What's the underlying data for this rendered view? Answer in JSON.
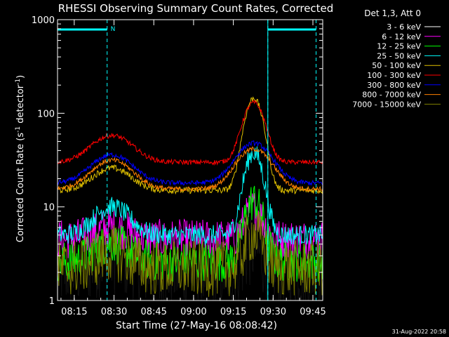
{
  "chart_data": {
    "type": "line",
    "title": "RHESSI Observing Summary Count Rates, Corrected",
    "xlabel": "Start Time (27-May-16 08:08:42)",
    "ylabel_main": "Corrected Count Rate (s",
    "ylabel_sup1": "-1",
    "ylabel_mid": " detector",
    "ylabel_sup2": "-1",
    "ylabel_end": ")",
    "yscale": "log",
    "xlim_minutes": [
      0,
      100
    ],
    "ylim": [
      1,
      1000
    ],
    "x_ticks": [
      {
        "label": "08:15",
        "t": 6.3
      },
      {
        "label": "08:30",
        "t": 21.3
      },
      {
        "label": "08:45",
        "t": 36.3
      },
      {
        "label": "09:00",
        "t": 51.3
      },
      {
        "label": "09:15",
        "t": 66.3
      },
      {
        "label": "09:30",
        "t": 81.3
      },
      {
        "label": "09:45",
        "t": 96.3
      }
    ],
    "y_ticks": [
      {
        "label": "1",
        "v": 1
      },
      {
        "label": "10",
        "v": 10
      },
      {
        "label": "100",
        "v": 100
      },
      {
        "label": "1000",
        "v": 1000
      }
    ],
    "legend_title": "Det 1,3, Att 0",
    "series": [
      {
        "name": "3 - 6 keV",
        "color": "#000000",
        "base": 2.0,
        "bumps": [
          {
            "t": 20.5,
            "a": 0.8,
            "w": 6
          },
          {
            "t": 74,
            "a": 1.5,
            "w": 3
          }
        ],
        "noise": 0.9
      },
      {
        "name": "6 - 12 keV",
        "color": "#ff00ff",
        "base": 4.5,
        "bumps": [
          {
            "t": 20.5,
            "a": 1.5,
            "w": 6
          },
          {
            "t": 74,
            "a": 5,
            "w": 3
          }
        ],
        "noise": 0.5
      },
      {
        "name": "12 - 25 keV",
        "color": "#00ff00",
        "base": 2.6,
        "bumps": [
          {
            "t": 20.5,
            "a": 1.5,
            "w": 6
          },
          {
            "t": 74,
            "a": 9,
            "w": 3
          }
        ],
        "noise": 0.5
      },
      {
        "name": "25 - 50 keV",
        "color": "#00ffff",
        "base": 5.0,
        "bumps": [
          {
            "t": 20.5,
            "a": 5,
            "w": 6
          },
          {
            "t": 74,
            "a": 33,
            "w": 3
          }
        ],
        "noise": 0.25
      },
      {
        "name": "50 - 100 keV",
        "color": "#e0c000",
        "base": 15.0,
        "bumps": [
          {
            "t": 20.5,
            "a": 11,
            "w": 6.5
          },
          {
            "t": 74,
            "a": 130,
            "w": 3
          }
        ],
        "noise": 0.08
      },
      {
        "name": "100 - 300 keV",
        "color": "#ff0000",
        "base": 30.0,
        "bumps": [
          {
            "t": 20.5,
            "a": 28,
            "w": 7
          },
          {
            "t": 74,
            "a": 100,
            "w": 3.6
          }
        ],
        "noise": 0.06
      },
      {
        "name": "300 - 800 keV",
        "color": "#0000ff",
        "base": 18.0,
        "bumps": [
          {
            "t": 20.5,
            "a": 18,
            "w": 7
          },
          {
            "t": 74,
            "a": 30,
            "w": 6
          }
        ],
        "noise": 0.06
      },
      {
        "name": "800 - 7000 keV",
        "color": "#ff8000",
        "base": 15.5,
        "bumps": [
          {
            "t": 20.5,
            "a": 16,
            "w": 7
          },
          {
            "t": 74,
            "a": 26,
            "w": 6
          }
        ],
        "noise": 0.06
      },
      {
        "name": "7000 - 15000 keV",
        "color": "#808000",
        "base": 2.2,
        "bumps": [
          {
            "t": 20.5,
            "a": 1.0,
            "w": 6
          },
          {
            "t": 74,
            "a": 3,
            "w": 3
          }
        ],
        "noise": 0.7
      }
    ],
    "night_markers_minutes": [
      18.7,
      79.3,
      97.5
    ],
    "saa_bars": [
      {
        "t0": 0,
        "t1": 18.7,
        "label": "N"
      },
      {
        "t0": 79.3,
        "t1": 97.5,
        "label": ""
      }
    ],
    "marker_color": "#00ffff",
    "footer_date": "31-Aug-2022 20:58"
  }
}
